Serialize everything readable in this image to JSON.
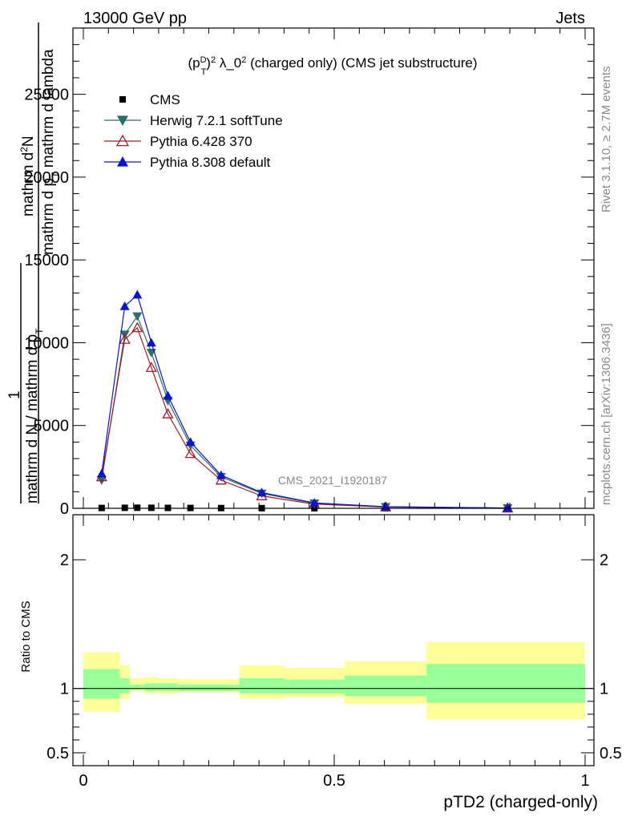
{
  "header": {
    "left": "13000 GeV pp",
    "right": "Jets"
  },
  "title": {
    "main": "(p",
    "sup_d": "D",
    "sub_t": "T",
    "rest": ")",
    "sup2": "2",
    "lam": " λ_0",
    "sup3": "2",
    "tail": " (charged only) (CMS jet substructure)"
  },
  "side_right_top": "Rivet 3.1.10, ≥ 2.7M events",
  "side_right_bottom": "mcplots.cern.ch [arXiv:1306.3436]",
  "watermark": "CMS_2021_I1920187",
  "ylabel_main": {
    "line1": "mathrm d",
    "line1_sup": "2",
    "line1_tail": "N",
    "line2": "mathrm d p",
    "line2_sub": "T",
    "line2_tail": " mathrm d lambda",
    "line3": "1",
    "line4": "mathrm d N / mathrm d p",
    "line4_sub": "T"
  },
  "ylabel_ratio": "Ratio to CMS",
  "xlabel": "pTD2 (charged-only)",
  "chart_data": [
    {
      "type": "line",
      "panel": "main",
      "ylim": [
        0,
        29000
      ],
      "xlim": [
        0,
        1
      ],
      "yticks": [
        0,
        5000,
        10000,
        15000,
        20000,
        25000
      ],
      "ytick_labels": [
        "0",
        "5000",
        "10000",
        "15000",
        "20000",
        "25000"
      ],
      "legend_position": "top-left",
      "x": [
        0.0365,
        0.0825,
        0.1075,
        0.1355,
        0.1685,
        0.2135,
        0.2745,
        0.3555,
        0.4605,
        0.6025,
        0.8455
      ],
      "series": [
        {
          "name": "CMS",
          "color": "#000000",
          "marker": "square",
          "values": [
            20,
            30,
            35,
            30,
            25,
            20,
            15,
            10,
            5,
            3,
            1
          ]
        },
        {
          "name": "Herwig 7.2.1 softTune",
          "color": "#2e6b6b",
          "marker": "triangle-down",
          "values": [
            1700,
            10500,
            11600,
            9400,
            6500,
            3800,
            1900,
            900,
            300,
            90,
            15
          ]
        },
        {
          "name": "Pythia 6.428 370",
          "color": "#a01e2a",
          "marker": "triangle-up-open",
          "values": [
            1900,
            10200,
            10900,
            8500,
            5700,
            3300,
            1700,
            750,
            250,
            80,
            12
          ]
        },
        {
          "name": "Pythia 8.308 default",
          "color": "#0a14c8",
          "marker": "triangle-up",
          "values": [
            2100,
            12200,
            12900,
            10000,
            6800,
            4000,
            2000,
            950,
            330,
            100,
            18
          ]
        }
      ]
    },
    {
      "type": "area",
      "panel": "ratio",
      "ylim": [
        0.4,
        2.35
      ],
      "xlim": [
        0,
        1
      ],
      "yticks": [
        0.5,
        1,
        2
      ],
      "ytick_labels": [
        "0.5",
        "1",
        "2"
      ],
      "xticks": [
        0,
        0.5,
        1
      ],
      "xtick_labels": [
        "0",
        "0.5",
        "1"
      ],
      "bin_edges": [
        0,
        0.073,
        0.092,
        0.123,
        0.148,
        0.189,
        0.238,
        0.311,
        0.4,
        0.521,
        0.684,
        1.0
      ],
      "outer_band": {
        "color": "#ffff99",
        "low": [
          0.82,
          0.92,
          0.98,
          0.96,
          0.96,
          0.97,
          0.97,
          0.92,
          0.93,
          0.88,
          0.76
        ],
        "high": [
          1.28,
          1.18,
          1.08,
          1.09,
          1.08,
          1.07,
          1.07,
          1.18,
          1.16,
          1.21,
          1.36
        ]
      },
      "inner_band": {
        "color": "#99ff99",
        "low": [
          0.92,
          0.96,
          0.99,
          0.98,
          0.98,
          0.98,
          0.98,
          0.96,
          0.96,
          0.94,
          0.89
        ],
        "high": [
          1.15,
          1.08,
          1.03,
          1.04,
          1.04,
          1.03,
          1.03,
          1.08,
          1.07,
          1.1,
          1.19
        ]
      }
    }
  ]
}
